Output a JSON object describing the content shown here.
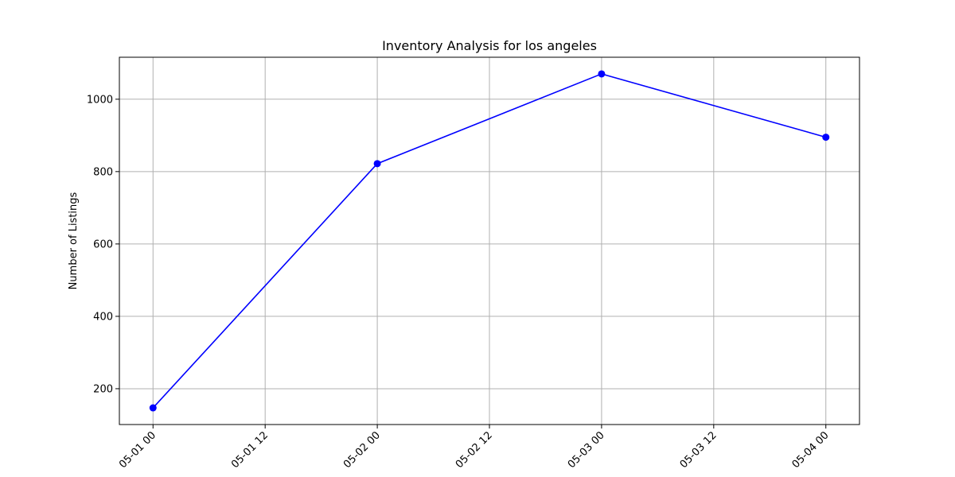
{
  "chart_data": {
    "type": "line",
    "title": "Inventory Analysis for los angeles",
    "xlabel": "",
    "ylabel": "Number of Listings",
    "x": [
      "05-01 00",
      "05-02 00",
      "05-03 00",
      "05-04 00"
    ],
    "x_hours": [
      0,
      24,
      48,
      72
    ],
    "series": [
      {
        "values": [
          147,
          822,
          1070,
          895
        ],
        "color": "#0000ff",
        "marker": "circle"
      }
    ],
    "xticks": [
      "05-01 00",
      "05-01 12",
      "05-02 00",
      "05-02 12",
      "05-03 00",
      "05-03 12",
      "05-04 00"
    ],
    "xticks_hours": [
      0,
      12,
      24,
      36,
      48,
      60,
      72
    ],
    "yticks": [
      200,
      400,
      600,
      800,
      1000
    ],
    "ylim": [
      101,
      1116
    ],
    "xlim_hours": [
      -3.6,
      75.6
    ],
    "grid": true,
    "legend": "none",
    "colors": {
      "line": "#0000ff",
      "grid": "#b0b0b0",
      "axes": "#000000"
    }
  }
}
